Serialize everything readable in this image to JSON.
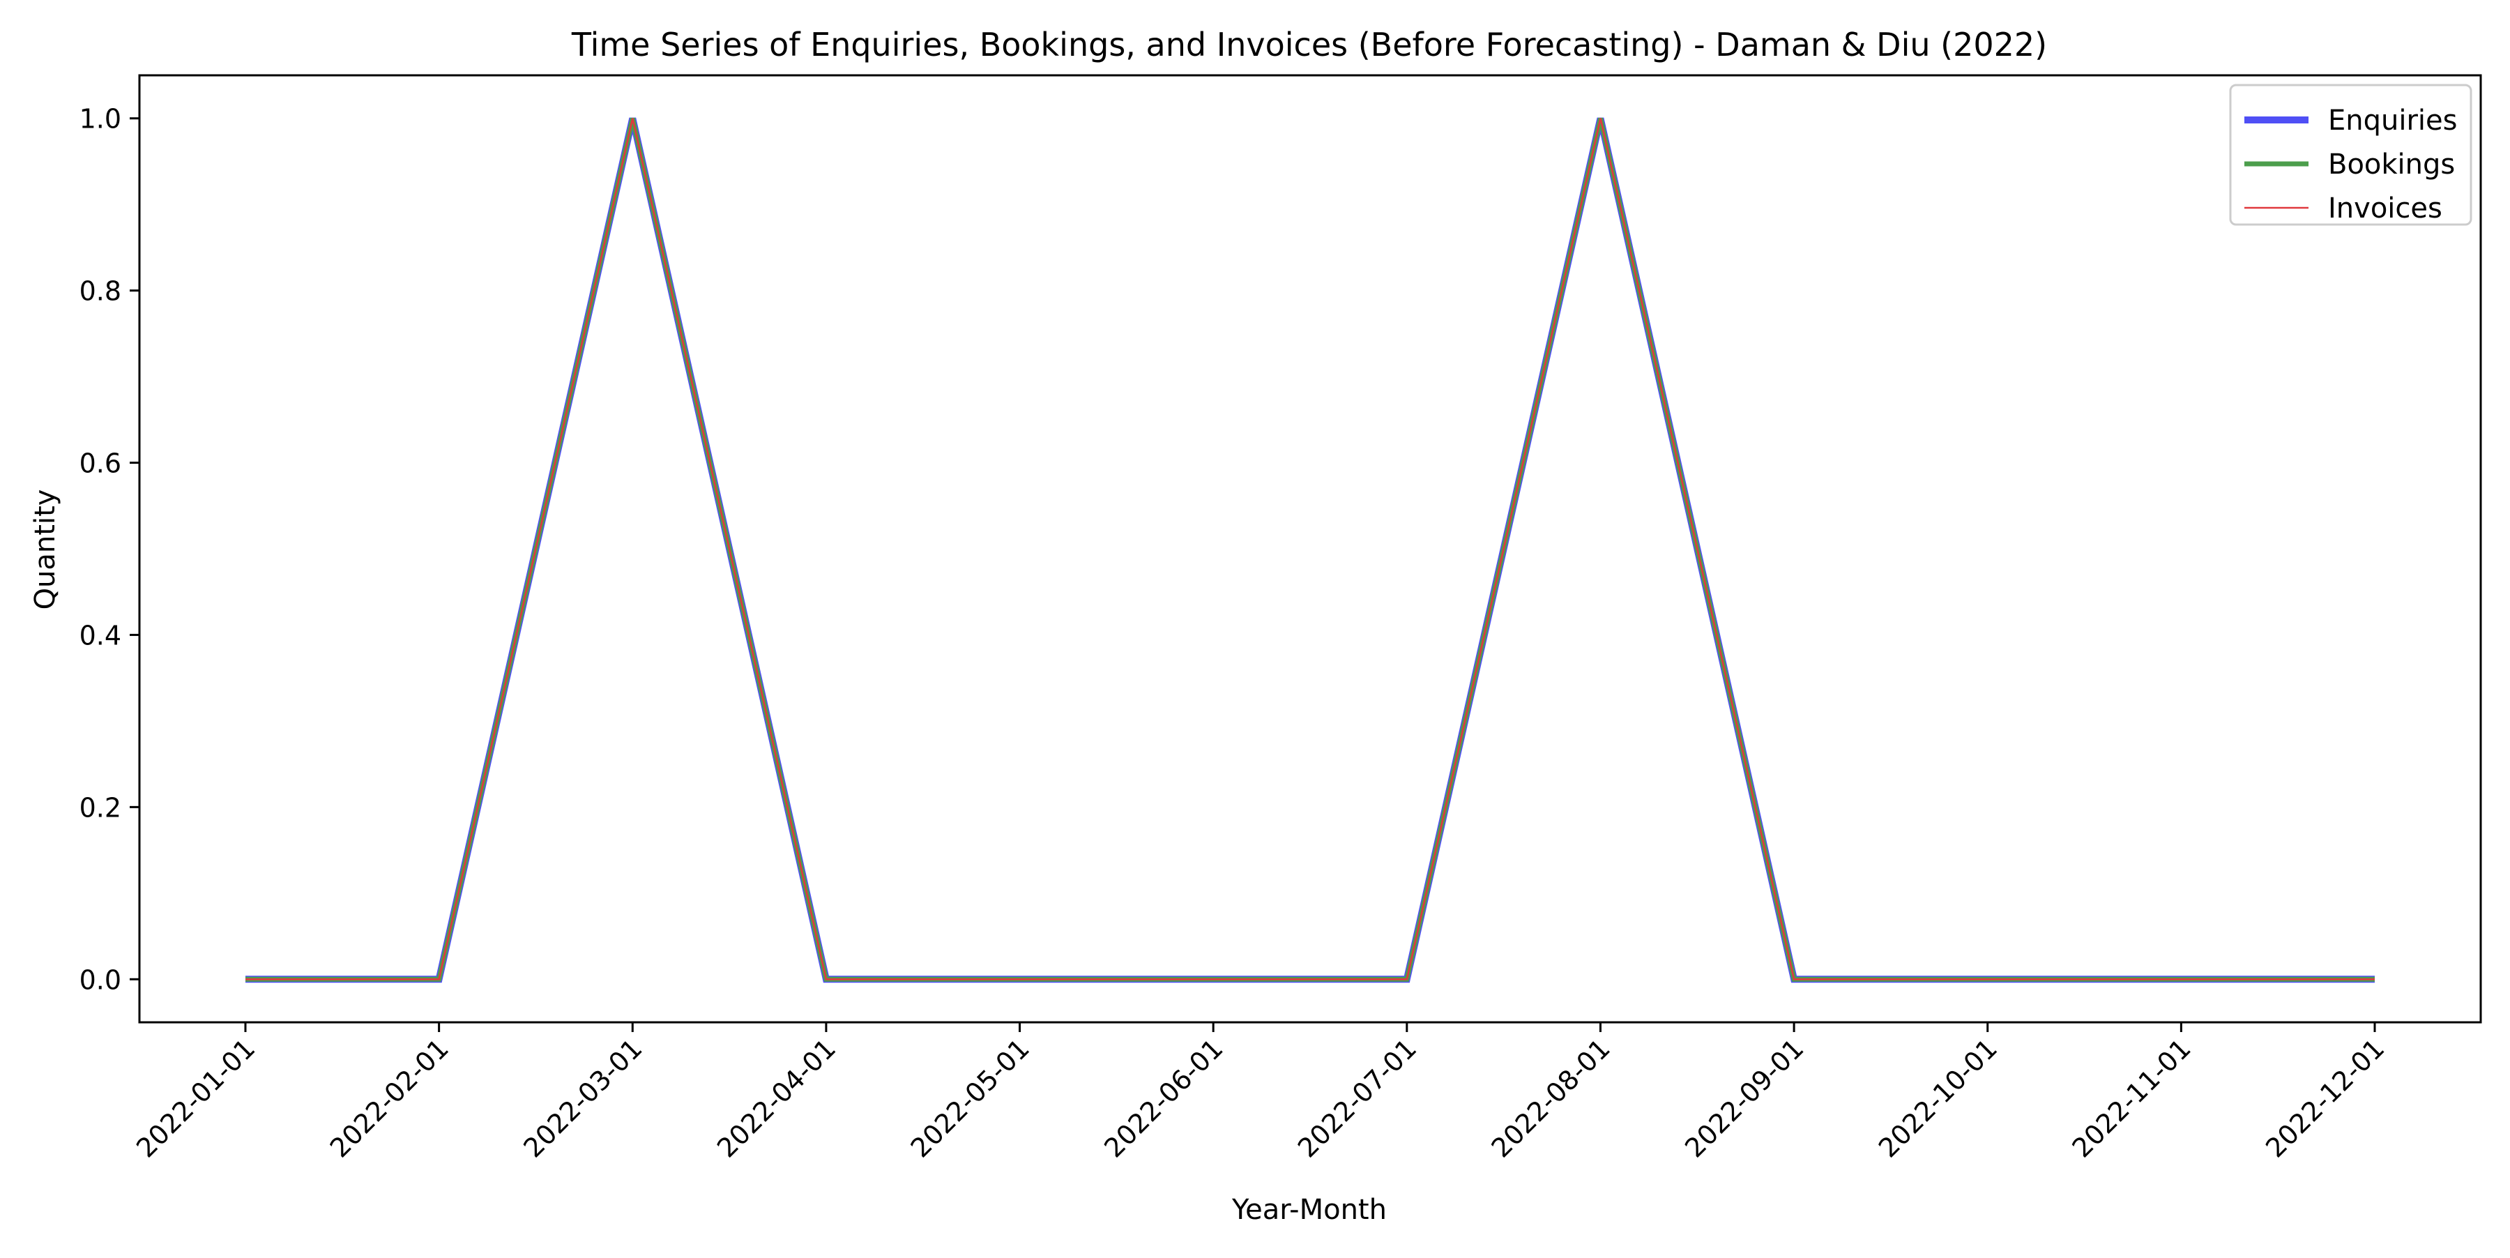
{
  "chart_data": {
    "type": "line",
    "title": "Time Series of Enquiries, Bookings, and Invoices (Before Forecasting) - Daman & Diu (2022)",
    "xlabel": "Year-Month",
    "ylabel": "Quantity",
    "x": [
      "2022-01-01",
      "2022-02-01",
      "2022-03-01",
      "2022-04-01",
      "2022-05-01",
      "2022-06-01",
      "2022-07-01",
      "2022-08-01",
      "2022-09-01",
      "2022-10-01",
      "2022-11-01",
      "2022-12-01"
    ],
    "ylim": [
      -0.05,
      1.05
    ],
    "yticks": [
      "0.0",
      "0.2",
      "0.4",
      "0.6",
      "0.8",
      "1.0"
    ],
    "grid": false,
    "legend_position": "top-right",
    "series": [
      {
        "name": "Enquiries",
        "color": "#4f4ff5",
        "values": [
          0,
          0,
          1,
          0,
          0,
          0,
          0,
          1,
          0,
          0,
          0,
          0
        ]
      },
      {
        "name": "Bookings",
        "color": "#4c9e4c",
        "values": [
          0,
          0,
          1,
          0,
          0,
          0,
          0,
          1,
          0,
          0,
          0,
          0
        ]
      },
      {
        "name": "Invoices",
        "color": "#e0393e",
        "values": [
          0,
          0,
          1,
          0,
          0,
          0,
          0,
          1,
          0,
          0,
          0,
          0
        ]
      }
    ]
  }
}
